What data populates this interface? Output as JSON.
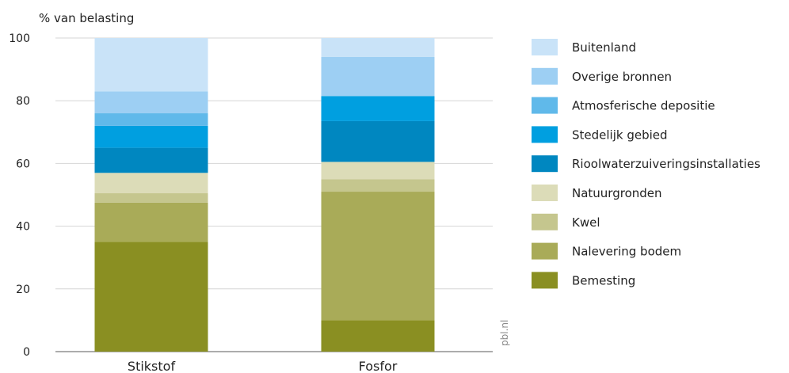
{
  "chart_data": {
    "type": "bar",
    "stacked": true,
    "ylabel": "% van belasting",
    "ylim": [
      0,
      100
    ],
    "yticks": [
      "0",
      "20",
      "40",
      "60",
      "80",
      "100"
    ],
    "yticks_values": [
      0,
      20,
      40,
      60,
      80,
      100
    ],
    "grid": true,
    "legend_position": "right",
    "categories": [
      "Stikstof",
      "Fosfor"
    ],
    "series": [
      {
        "name": "Bemesting",
        "color": "#8a8f22",
        "values": [
          35,
          10
        ]
      },
      {
        "name": "Nalevering bodem",
        "color": "#a9ab58",
        "values": [
          12.5,
          41
        ]
      },
      {
        "name": "Kwel",
        "color": "#c5c68e",
        "values": [
          3,
          4
        ]
      },
      {
        "name": "Natuurgronden",
        "color": "#dcdcb8",
        "values": [
          6.5,
          5.5
        ]
      },
      {
        "name": "Rioolwaterzuiveringsinstallaties",
        "color": "#0087c0",
        "values": [
          8,
          13
        ]
      },
      {
        "name": "Stedelijk gebied",
        "color": "#009fe0",
        "values": [
          7,
          8
        ]
      },
      {
        "name": "Atmosferische depositie",
        "color": "#60b9ea",
        "values": [
          4,
          0
        ]
      },
      {
        "name": "Overige bronnen",
        "color": "#9dcff3",
        "values": [
          7,
          12.5
        ]
      },
      {
        "name": "Buitenland",
        "color": "#c9e3f8",
        "values": [
          17,
          6
        ]
      }
    ]
  },
  "credit": "pbl.nl"
}
